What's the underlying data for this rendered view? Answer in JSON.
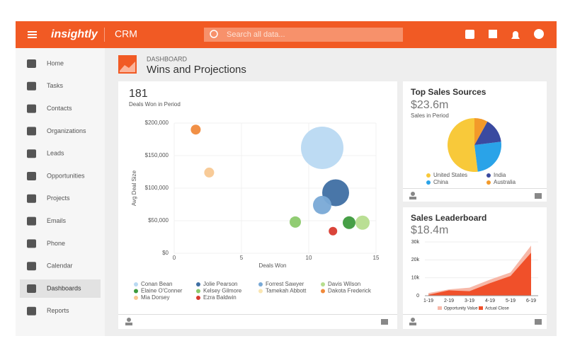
{
  "header": {
    "logo": "insightly",
    "app": "CRM",
    "search": "Search all data..."
  },
  "sidebar": {
    "items": [
      "Home",
      "Tasks",
      "Contacts",
      "Organizations",
      "Leads",
      "Opportunities",
      "Projects",
      "Emails",
      "Phone",
      "Calendar",
      "Dashboards",
      "Reports"
    ],
    "active": 10
  },
  "page": {
    "section": "DASHBOARD",
    "title": "Wins and Projections"
  },
  "chart_data": [
    {
      "type": "bubble",
      "title": "181",
      "subtitle": "Deals Won in Period",
      "x_label": "Deals Won",
      "y_label": "Avg Deal Size",
      "xlim": [
        0,
        15
      ],
      "xticks": [
        0,
        5,
        10,
        15
      ],
      "ylim": [
        0,
        200000
      ],
      "yticks": [
        {
          "value": 0,
          "label": "$0"
        },
        {
          "value": 50000,
          "label": "$50,000"
        },
        {
          "value": 100000,
          "label": "$100,000"
        },
        {
          "value": 150000,
          "label": "$150,000"
        },
        {
          "value": 200000,
          "label": "$200,000"
        }
      ],
      "grid": true,
      "series": [
        {
          "name": "Conan Bean",
          "color": "#b9d9f2",
          "x": [
            11
          ],
          "values": [
            162000
          ],
          "sizes": [
            30
          ]
        },
        {
          "name": "Jolie Pearson",
          "color": "#3f6fa3",
          "x": [
            12
          ],
          "values": [
            93000
          ],
          "sizes": [
            19
          ]
        },
        {
          "name": "Forrest Sawyer",
          "color": "#79a9d6",
          "x": [
            11
          ],
          "values": [
            74000
          ],
          "sizes": [
            13
          ]
        },
        {
          "name": "Davis Wilson",
          "color": "#b6dd8e",
          "x": [
            14
          ],
          "values": [
            47000
          ],
          "sizes": [
            10
          ]
        },
        {
          "name": "Elaine O'Conner",
          "color": "#3d9a3d",
          "x": [
            13
          ],
          "values": [
            47000
          ],
          "sizes": [
            9
          ]
        },
        {
          "name": "Kelsey Gilmore",
          "color": "#8bc96b",
          "x": [
            9
          ],
          "values": [
            48000
          ],
          "sizes": [
            8
          ]
        },
        {
          "name": "Tamekah Abbott",
          "color": "#fae6b2",
          "x": [
            null
          ],
          "values": [
            null
          ],
          "sizes": [
            null
          ]
        },
        {
          "name": "Dakota Frederick",
          "color": "#f08a3c",
          "x": [
            1.6
          ],
          "values": [
            190000
          ],
          "sizes": [
            7
          ]
        },
        {
          "name": "Mia Dorsey",
          "color": "#f8c892",
          "x": [
            2.6
          ],
          "values": [
            124000
          ],
          "sizes": [
            7
          ]
        },
        {
          "name": "Ezra Baldwin",
          "color": "#d83a2f",
          "x": [
            11.8
          ],
          "values": [
            34000
          ],
          "sizes": [
            6
          ]
        }
      ]
    },
    {
      "type": "pie",
      "title": "Top Sales Sources",
      "value": "$23.6m",
      "subtitle": "Sales in Period",
      "categories": [
        "United States",
        "China",
        "India",
        "Australia"
      ],
      "values": [
        52,
        25,
        15,
        8
      ],
      "colors": [
        "#f8c93a",
        "#2aa3e8",
        "#3a4aa0",
        "#f39a2a"
      ]
    },
    {
      "type": "area",
      "title": "Sales Leaderboard",
      "value": "$18.4m",
      "categories": [
        "1-19",
        "2-19",
        "3-19",
        "4-19",
        "5-19",
        "6-19"
      ],
      "ylim": [
        0,
        30000
      ],
      "yticks": [
        0,
        {
          "value": 10000,
          "label": "10k"
        },
        {
          "value": 20000,
          "label": "20k"
        },
        {
          "value": 30000,
          "label": "30k"
        }
      ],
      "series": [
        {
          "name": "Opportunity Value",
          "color": "#f7b8a8",
          "values": [
            1500,
            3500,
            4500,
            9000,
            13000,
            28000
          ]
        },
        {
          "name": "Actual Close",
          "color": "#f0502a",
          "values": [
            500,
            3000,
            2500,
            7000,
            11000,
            24000
          ]
        }
      ]
    }
  ]
}
